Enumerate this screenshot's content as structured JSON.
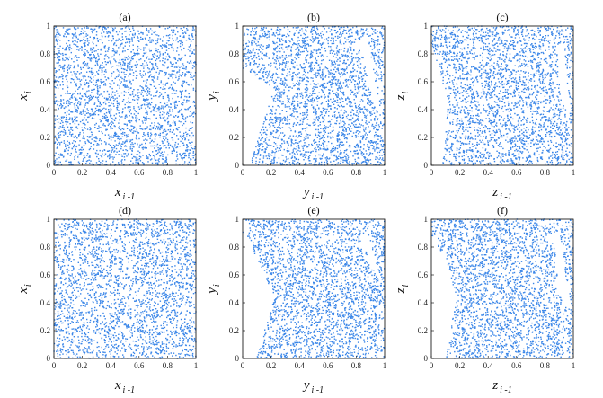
{
  "chart_data": [
    {
      "type": "scatter",
      "title": "(a)",
      "xlabel": {
        "var": "x",
        "sub": "i -1"
      },
      "ylabel": {
        "var": "x",
        "sub": "i"
      },
      "xlim": [
        0,
        1
      ],
      "ylim": [
        0,
        1
      ],
      "grid": false,
      "xticks": [
        "0",
        "0.2",
        "0.4",
        "0.6",
        "0.8",
        "1"
      ],
      "yticks": [
        "0",
        "0.2",
        "0.4",
        "0.6",
        "0.8",
        "1"
      ],
      "color": "#3a86e8",
      "empty_regions": []
    },
    {
      "type": "scatter",
      "title": "(b)",
      "xlabel": {
        "var": "y",
        "sub": "i -1"
      },
      "ylabel": {
        "var": "y",
        "sub": "i"
      },
      "xlim": [
        0,
        1
      ],
      "ylim": [
        0,
        1
      ],
      "grid": false,
      "xticks": [
        "0",
        "0.2",
        "0.4",
        "0.6",
        "0.8",
        "1"
      ],
      "yticks": [
        "0",
        "0.2",
        "0.4",
        "0.6",
        "0.8",
        "1"
      ],
      "color": "#3a86e8",
      "empty_regions": [
        [
          [
            0,
            0
          ],
          [
            0.05,
            0
          ],
          [
            0.22,
            0.55
          ],
          [
            0,
            0.7
          ]
        ],
        [
          [
            0.82,
            0.9
          ],
          [
            0.88,
            0.92
          ],
          [
            0.98,
            0.35
          ],
          [
            0.92,
            0.45
          ]
        ]
      ]
    },
    {
      "type": "scatter",
      "title": "(c)",
      "xlabel": {
        "var": "z",
        "sub": "i -1"
      },
      "ylabel": {
        "var": "z",
        "sub": "i"
      },
      "xlim": [
        0,
        1
      ],
      "ylim": [
        0,
        1
      ],
      "grid": false,
      "xticks": [
        "0",
        "0.2",
        "0.4",
        "0.6",
        "0.8",
        "1"
      ],
      "yticks": [
        "0",
        "0.2",
        "0.4",
        "0.6",
        "0.8",
        "1"
      ],
      "color": "#3a86e8",
      "empty_regions": [
        [
          [
            0,
            0
          ],
          [
            0.08,
            0
          ],
          [
            0.12,
            0.45
          ],
          [
            0.01,
            0.85
          ],
          [
            0,
            0.85
          ]
        ],
        [
          [
            0.88,
            0.85
          ],
          [
            0.93,
            0.9
          ],
          [
            0.98,
            0.35
          ],
          [
            0.92,
            0.45
          ]
        ]
      ]
    },
    {
      "type": "scatter",
      "title": "(d)",
      "xlabel": {
        "var": "x",
        "sub": "i -1"
      },
      "ylabel": {
        "var": "x",
        "sub": "i"
      },
      "xlim": [
        0,
        1
      ],
      "ylim": [
        0,
        1
      ],
      "grid": false,
      "xticks": [
        "0",
        "0.2",
        "0.4",
        "0.6",
        "0.8",
        "1"
      ],
      "yticks": [
        "0",
        "0.2",
        "0.4",
        "0.6",
        "0.8",
        "1"
      ],
      "color": "#3a86e8",
      "empty_regions": [
        [
          [
            0.95,
            0.95
          ],
          [
            0.97,
            0.95
          ],
          [
            1,
            0.7
          ],
          [
            0.98,
            0.75
          ]
        ]
      ]
    },
    {
      "type": "scatter",
      "title": "(e)",
      "xlabel": {
        "var": "y",
        "sub": "i -1"
      },
      "ylabel": {
        "var": "y",
        "sub": "i"
      },
      "xlim": [
        0,
        1
      ],
      "ylim": [
        0,
        1
      ],
      "grid": false,
      "xticks": [
        "0",
        "0.2",
        "0.4",
        "0.6",
        "0.8",
        "1"
      ],
      "yticks": [
        "0",
        "0.2",
        "0.4",
        "0.6",
        "0.8",
        "1"
      ],
      "color": "#3a86e8",
      "empty_regions": [
        [
          [
            0,
            0
          ],
          [
            0.1,
            0
          ],
          [
            0.22,
            0.45
          ],
          [
            0.02,
            0.9
          ],
          [
            0,
            0.9
          ]
        ],
        [
          [
            0.82,
            0.88
          ],
          [
            0.88,
            0.9
          ],
          [
            0.98,
            0.55
          ],
          [
            0.93,
            0.62
          ]
        ]
      ]
    },
    {
      "type": "scatter",
      "title": "(f)",
      "xlabel": {
        "var": "z",
        "sub": "i -1"
      },
      "ylabel": {
        "var": "z",
        "sub": "i"
      },
      "xlim": [
        0,
        1
      ],
      "ylim": [
        0,
        1
      ],
      "grid": false,
      "xticks": [
        "0",
        "0.2",
        "0.4",
        "0.6",
        "0.8",
        "1"
      ],
      "yticks": [
        "0",
        "0.2",
        "0.4",
        "0.6",
        "0.8",
        "1"
      ],
      "color": "#3a86e8",
      "empty_regions": [
        [
          [
            0,
            0
          ],
          [
            0.1,
            0
          ],
          [
            0.18,
            0.45
          ],
          [
            0.02,
            0.88
          ],
          [
            0,
            0.88
          ]
        ],
        [
          [
            0.86,
            0.9
          ],
          [
            0.9,
            0.92
          ],
          [
            0.98,
            0.35
          ],
          [
            0.9,
            0.45
          ]
        ]
      ]
    }
  ]
}
